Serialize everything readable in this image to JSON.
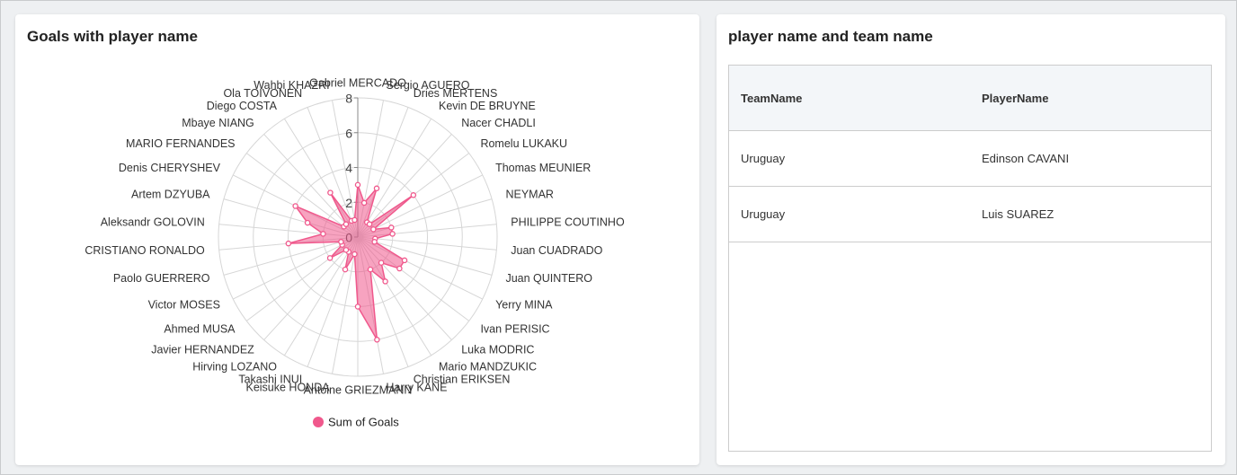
{
  "chart_data": {
    "type": "radar",
    "title": "Goals with player name",
    "categories": [
      "Gabriel MERCADO",
      "Sergio AGUERO",
      "Dries MERTENS",
      "Kevin DE BRUYNE",
      "Nacer CHADLI",
      "Romelu LUKAKU",
      "Thomas MEUNIER",
      "NEYMAR",
      "PHILIPPE COUTINHO",
      "Juan CUADRADO",
      "Juan QUINTERO",
      "Yerry MINA",
      "Ivan PERISIC",
      "Luka MODRIC",
      "Mario MANDZUKIC",
      "Christian ERIKSEN",
      "Harry KANE",
      "Antoine GRIEZMANN",
      "Keisuke HONDA",
      "Takashi INUI",
      "Hirving LOZANO",
      "Javier HERNANDEZ",
      "Ahmed MUSA",
      "Victor MOSES",
      "Paolo GUERRERO",
      "CRISTIANO RONALDO",
      "Aleksandr GOLOVIN",
      "Artem DZYUBA",
      "Denis CHERYSHEV",
      "MARIO FERNANDES",
      "Mbaye NIANG",
      "Diego COSTA",
      "Ola TOIVONEN",
      "Wahbi KHAZRI"
    ],
    "series": [
      {
        "name": "Sum of Goals",
        "color": "#f0588c",
        "values": [
          3,
          2,
          3,
          1,
          1,
          4,
          1,
          2,
          2,
          1,
          1,
          3,
          3,
          2,
          3,
          2,
          6,
          4,
          1,
          2,
          1,
          1,
          2,
          1,
          1,
          4,
          2,
          3,
          4,
          1,
          1,
          3,
          1,
          1
        ]
      }
    ],
    "ylim": [
      0,
      8
    ],
    "yticks": [
      0,
      2,
      4,
      6,
      8
    ],
    "grid": true
  },
  "table": {
    "title": "player name and team name",
    "columns": [
      "TeamName",
      "PlayerName"
    ],
    "rows": [
      [
        "Uruguay",
        "Edinson CAVANI"
      ],
      [
        "Uruguay",
        "Luis SUAREZ"
      ]
    ]
  }
}
